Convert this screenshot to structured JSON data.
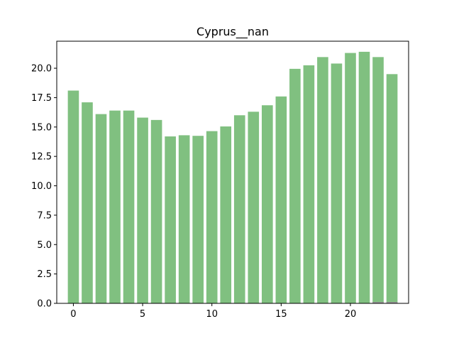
{
  "chart_data": {
    "type": "bar",
    "title": "Cyprus__nan",
    "xlabel": "",
    "ylabel": "",
    "x": [
      0,
      1,
      2,
      3,
      4,
      5,
      6,
      7,
      8,
      9,
      10,
      11,
      12,
      13,
      14,
      15,
      16,
      17,
      18,
      19,
      20,
      21,
      22,
      23
    ],
    "series": [
      {
        "values": [
          18.1,
          17.1,
          16.1,
          16.4,
          16.4,
          15.8,
          15.6,
          14.2,
          14.3,
          14.25,
          14.65,
          15.05,
          16.0,
          16.3,
          16.85,
          17.6,
          19.95,
          20.25,
          20.95,
          20.4,
          21.3,
          21.4,
          20.95,
          19.5
        ],
        "color": "#80c080"
      },
      {
        "values": [
          0,
          0,
          0,
          0,
          0,
          0,
          0,
          0,
          0,
          0,
          0,
          0,
          0,
          0,
          0,
          0,
          0,
          0,
          0,
          0,
          0,
          0,
          0.12,
          0.12
        ],
        "color": "#999999"
      }
    ],
    "xlim": [
      -1.2,
      24.2
    ],
    "ylim": [
      0,
      22.3
    ],
    "xticks": [
      0,
      5,
      10,
      15,
      20
    ],
    "xtick_labels": [
      "0",
      "5",
      "10",
      "15",
      "20"
    ],
    "yticks": [
      0,
      2.5,
      5,
      7.5,
      10,
      12.5,
      15,
      17.5,
      20
    ],
    "ytick_labels": [
      "0.0",
      "2.5",
      "5.0",
      "7.5",
      "10.0",
      "12.5",
      "15.0",
      "17.5",
      "20.0"
    ],
    "grid": false,
    "legend": "none"
  }
}
